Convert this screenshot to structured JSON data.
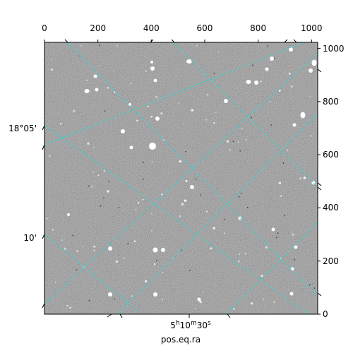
{
  "figure": {
    "x_pixel_ticks": [
      "0",
      "200",
      "400",
      "600",
      "800",
      "1000"
    ],
    "y_pixel_ticks": [
      "0",
      "200",
      "400",
      "600",
      "800",
      "1000"
    ],
    "world_axis_label": "pos.eq.ra",
    "dec_labels": [
      "18°05'",
      "10'"
    ],
    "ra_label": "5h10m30s"
  },
  "colors": {
    "grid": "#2fd6d6",
    "background": "#ffffff",
    "sky": "#6e6e6e"
  }
}
